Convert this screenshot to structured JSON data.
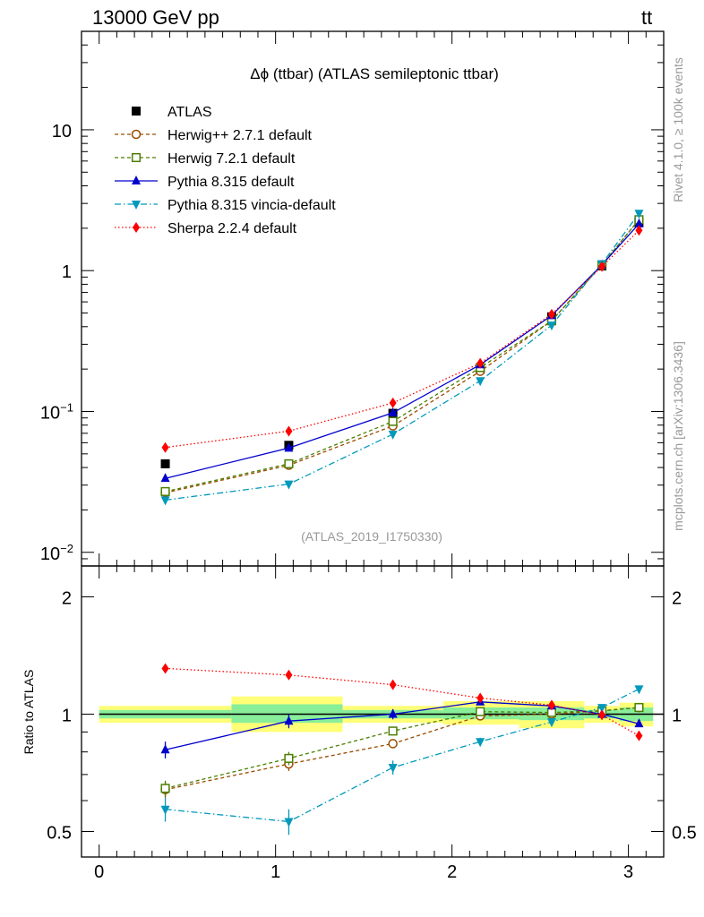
{
  "header": {
    "left": "13000 GeV pp",
    "right_main": "tt",
    "right_bar": "̄"
  },
  "side_labels": {
    "rivet": "Rivet 4.1.0, ≥ 100k events",
    "mcplots": "mcplots.cern.ch [arXiv:1306.3436]"
  },
  "chart_data": {
    "type": "line",
    "title": "Δϕ (ttbar) (ATLAS semileptonic ttbar)",
    "analysis_tag": "(ATLAS_2019_I1750330)",
    "xlabel": "",
    "xlim": [
      -0.1,
      3.2
    ],
    "xticks": [
      0,
      1,
      2,
      3
    ],
    "main": {
      "yscale": "log",
      "ylim": [
        0.008,
        50
      ],
      "yticks": [
        {
          "value": 10,
          "label": "10",
          "sup": ""
        },
        {
          "value": 1,
          "label": "1",
          "sup": ""
        },
        {
          "value": 0.1,
          "label": "10",
          "sup": "−1"
        },
        {
          "value": 0.01,
          "label": "10",
          "sup": "−2"
        }
      ],
      "x": [
        0.375,
        1.075,
        1.665,
        2.16,
        2.565,
        2.85,
        3.06
      ],
      "series": [
        {
          "name": "ATLAS",
          "color": "#000000",
          "marker": "square-filled",
          "dash": "none",
          "values": [
            0.0425,
            0.0575,
            0.097,
            0.2,
            0.47,
            1.08,
            2.2
          ]
        },
        {
          "name": "Herwig++ 2.7.1 default",
          "color": "#994c00",
          "marker": "circle-open",
          "dash": "4,3",
          "values": [
            0.0265,
            0.0415,
            0.079,
            0.193,
            0.44,
            1.1,
            2.3
          ]
        },
        {
          "name": "Herwig 7.2.1 default",
          "color": "#4c7f00",
          "marker": "square-open",
          "dash": "4,3",
          "values": [
            0.027,
            0.0425,
            0.085,
            0.205,
            0.44,
            1.1,
            2.3
          ]
        },
        {
          "name": "Pythia 8.315 default",
          "color": "#0000cc",
          "marker": "triangle-up",
          "dash": "none",
          "values": [
            0.0335,
            0.055,
            0.098,
            0.215,
            0.48,
            1.1,
            2.15
          ]
        },
        {
          "name": "Pythia 8.315 vincia-default",
          "color": "#0099bb",
          "marker": "triangle-down",
          "dash": "7,3,1.5,3",
          "values": [
            0.0235,
            0.0305,
            0.069,
            0.165,
            0.41,
            1.12,
            2.55
          ]
        },
        {
          "name": "Sherpa 2.2.4 default",
          "color": "#ff0000",
          "marker": "diamond",
          "dash": "1.5,2.5",
          "values": [
            0.0555,
            0.0725,
            0.115,
            0.22,
            0.49,
            1.07,
            1.93
          ]
        }
      ]
    },
    "ratio": {
      "ylabel": "Ratio to ATLAS",
      "yscale": "log",
      "ylim": [
        0.43,
        2.4
      ],
      "yticks": [
        {
          "value": 0.5,
          "label": "0.5"
        },
        {
          "value": 1,
          "label": "1"
        },
        {
          "value": 2,
          "label": "2"
        }
      ],
      "bins": [
        {
          "lo": 0.0,
          "hi": 0.75,
          "green": [
            0.975,
            1.025
          ],
          "yellow": [
            0.95,
            1.05
          ]
        },
        {
          "lo": 0.75,
          "hi": 1.38,
          "green": [
            0.95,
            1.06
          ],
          "yellow": [
            0.9,
            1.11
          ]
        },
        {
          "lo": 1.38,
          "hi": 1.95,
          "green": [
            0.975,
            1.025
          ],
          "yellow": [
            0.95,
            1.05
          ]
        },
        {
          "lo": 1.95,
          "hi": 2.38,
          "green": [
            0.97,
            1.04
          ],
          "yellow": [
            0.94,
            1.08
          ]
        },
        {
          "lo": 2.38,
          "hi": 2.75,
          "green": [
            0.965,
            1.04
          ],
          "yellow": [
            0.92,
            1.08
          ]
        },
        {
          "lo": 2.75,
          "hi": 2.95,
          "green": [
            0.975,
            1.025
          ],
          "yellow": [
            0.95,
            1.05
          ]
        },
        {
          "lo": 2.95,
          "hi": 3.14,
          "green": [
            0.96,
            1.04
          ],
          "yellow": [
            0.93,
            1.07
          ]
        }
      ],
      "series": [
        {
          "name": "Herwig++ 2.7.1 default",
          "values": [
            0.64,
            0.745,
            0.84,
            0.99,
            1.0,
            1.02,
            1.04
          ],
          "errors": [
            0.03,
            0.03,
            0.02,
            0.015,
            0.01,
            0.01,
            0.01
          ]
        },
        {
          "name": "Herwig 7.2.1 default",
          "values": [
            0.645,
            0.77,
            0.905,
            1.015,
            1.01,
            1.02,
            1.04
          ],
          "errors": [
            0.03,
            0.03,
            0.02,
            0.015,
            0.01,
            0.01,
            0.01
          ]
        },
        {
          "name": "Pythia 8.315 default",
          "values": [
            0.81,
            0.96,
            1.0,
            1.075,
            1.05,
            1.0,
            0.945
          ],
          "errors": [
            0.04,
            0.04,
            0.03,
            0.02,
            0.015,
            0.01,
            0.01
          ]
        },
        {
          "name": "Pythia 8.315 vincia-default",
          "values": [
            0.57,
            0.53,
            0.73,
            0.85,
            0.955,
            1.04,
            1.16
          ],
          "errors": [
            0.04,
            0.04,
            0.03,
            0.02,
            0.015,
            0.01,
            0.01
          ]
        },
        {
          "name": "Sherpa 2.2.4 default",
          "values": [
            1.31,
            1.26,
            1.19,
            1.1,
            1.055,
            0.995,
            0.88
          ],
          "errors": [
            0.03,
            0.03,
            0.02,
            0.015,
            0.01,
            0.01,
            0.01
          ]
        }
      ]
    }
  }
}
